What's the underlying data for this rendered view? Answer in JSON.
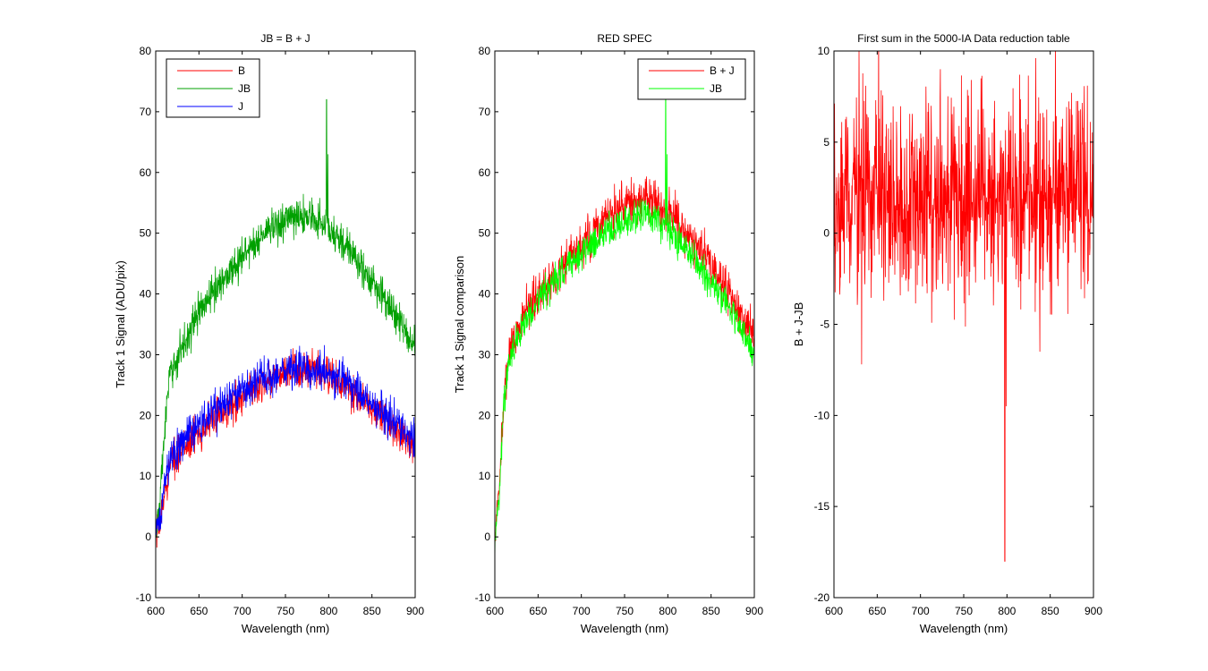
{
  "figure": {
    "background": "#ffffff",
    "axes_color": "#000000"
  },
  "chart_data": [
    {
      "type": "line",
      "title": "JB = B + J",
      "xlabel": "Wavelength (nm)",
      "ylabel": "Track 1 Signal (ADU/pix)",
      "xlim": [
        600,
        900
      ],
      "ylim": [
        -10,
        80
      ],
      "xticks": [
        600,
        650,
        700,
        750,
        800,
        850,
        900
      ],
      "yticks": [
        -10,
        0,
        10,
        20,
        30,
        40,
        50,
        60,
        70,
        80
      ],
      "grid": false,
      "legend": {
        "position": "top-left",
        "entries": [
          "B",
          "JB",
          "J"
        ]
      },
      "series": [
        {
          "name": "B",
          "color": "#ff0000",
          "x": [
            600,
            605,
            610,
            615,
            620,
            630,
            640,
            650,
            675,
            700,
            725,
            750,
            775,
            800,
            825,
            850,
            875,
            900
          ],
          "y": [
            0,
            2,
            7,
            11,
            13,
            14.5,
            16,
            17.5,
            20.5,
            23,
            25.5,
            27,
            27.5,
            26.5,
            24,
            21,
            18,
            15
          ],
          "noise": 1.5,
          "spikes": []
        },
        {
          "name": "JB",
          "color": "#00a000",
          "x": [
            600,
            605,
            610,
            615,
            620,
            630,
            640,
            650,
            675,
            700,
            725,
            750,
            775,
            800,
            825,
            850,
            875,
            900
          ],
          "y": [
            0,
            6,
            17,
            25,
            28,
            31,
            34,
            37,
            42,
            46,
            50,
            52,
            53,
            51,
            47,
            42,
            37,
            31
          ],
          "noise": 1.5,
          "spikes": [
            [
              797.5,
              72
            ],
            [
              799,
              63
            ]
          ]
        },
        {
          "name": "J",
          "color": "#0000ff",
          "x": [
            600,
            605,
            610,
            615,
            620,
            630,
            640,
            650,
            675,
            700,
            725,
            750,
            775,
            800,
            825,
            850,
            875,
            900
          ],
          "y": [
            0,
            3,
            8,
            12,
            14,
            15.5,
            17,
            18.5,
            21.5,
            24,
            26,
            27.5,
            28,
            27,
            25,
            22,
            19,
            16
          ],
          "noise": 1.6,
          "spikes": []
        }
      ]
    },
    {
      "type": "line",
      "title": "RED SPEC",
      "xlabel": "Wavelength (nm)",
      "ylabel": "Track 1 Signal comparison",
      "xlim": [
        600,
        900
      ],
      "ylim": [
        -10,
        80
      ],
      "xticks": [
        600,
        650,
        700,
        750,
        800,
        850,
        900
      ],
      "yticks": [
        -10,
        0,
        10,
        20,
        30,
        40,
        50,
        60,
        70,
        80
      ],
      "grid": false,
      "legend": {
        "position": "top-right",
        "entries": [
          "B + J",
          "JB"
        ]
      },
      "series": [
        {
          "name": "B + J",
          "color": "#ff0000",
          "x": [
            600,
            605,
            610,
            615,
            620,
            630,
            640,
            650,
            675,
            700,
            725,
            750,
            775,
            800,
            825,
            850,
            875,
            900
          ],
          "y": [
            -1,
            8,
            22,
            29,
            32,
            35,
            38,
            40,
            44,
            48,
            52,
            55,
            56,
            54,
            50,
            45,
            39,
            33
          ],
          "noise": 1.8,
          "spikes": []
        },
        {
          "name": "JB",
          "color": "#00ff00",
          "x": [
            600,
            605,
            610,
            615,
            620,
            630,
            640,
            650,
            675,
            700,
            725,
            750,
            775,
            800,
            825,
            850,
            875,
            900
          ],
          "y": [
            -1,
            7,
            21,
            28,
            31,
            34,
            37,
            39,
            43,
            47,
            50,
            52,
            53,
            51,
            47,
            42,
            37,
            30
          ],
          "noise": 1.4,
          "spikes": [
            [
              797.5,
              72
            ],
            [
              799,
              63
            ]
          ]
        }
      ]
    },
    {
      "type": "line",
      "title": "First sum in the 5000-IA Data reduction table",
      "xlabel": "Wavelength (nm)",
      "ylabel": "B + J-JB",
      "xlim": [
        600,
        900
      ],
      "ylim": [
        -20,
        10
      ],
      "xticks": [
        600,
        650,
        700,
        750,
        800,
        850,
        900
      ],
      "yticks": [
        -20,
        -15,
        -10,
        -5,
        0,
        5,
        10
      ],
      "grid": false,
      "legend": null,
      "series": [
        {
          "name": "B + J-JB",
          "color": "#ff0000",
          "x": [
            600,
            900
          ],
          "y": [
            2,
            2
          ],
          "noise": 2.6,
          "spikes": [
            [
              797.5,
              -18
            ],
            [
              799,
              -9.5
            ],
            [
              632,
              -7.2
            ],
            [
              838,
              -6.5
            ],
            [
              723,
              9
            ],
            [
              770,
              8.5
            ]
          ]
        }
      ]
    }
  ]
}
